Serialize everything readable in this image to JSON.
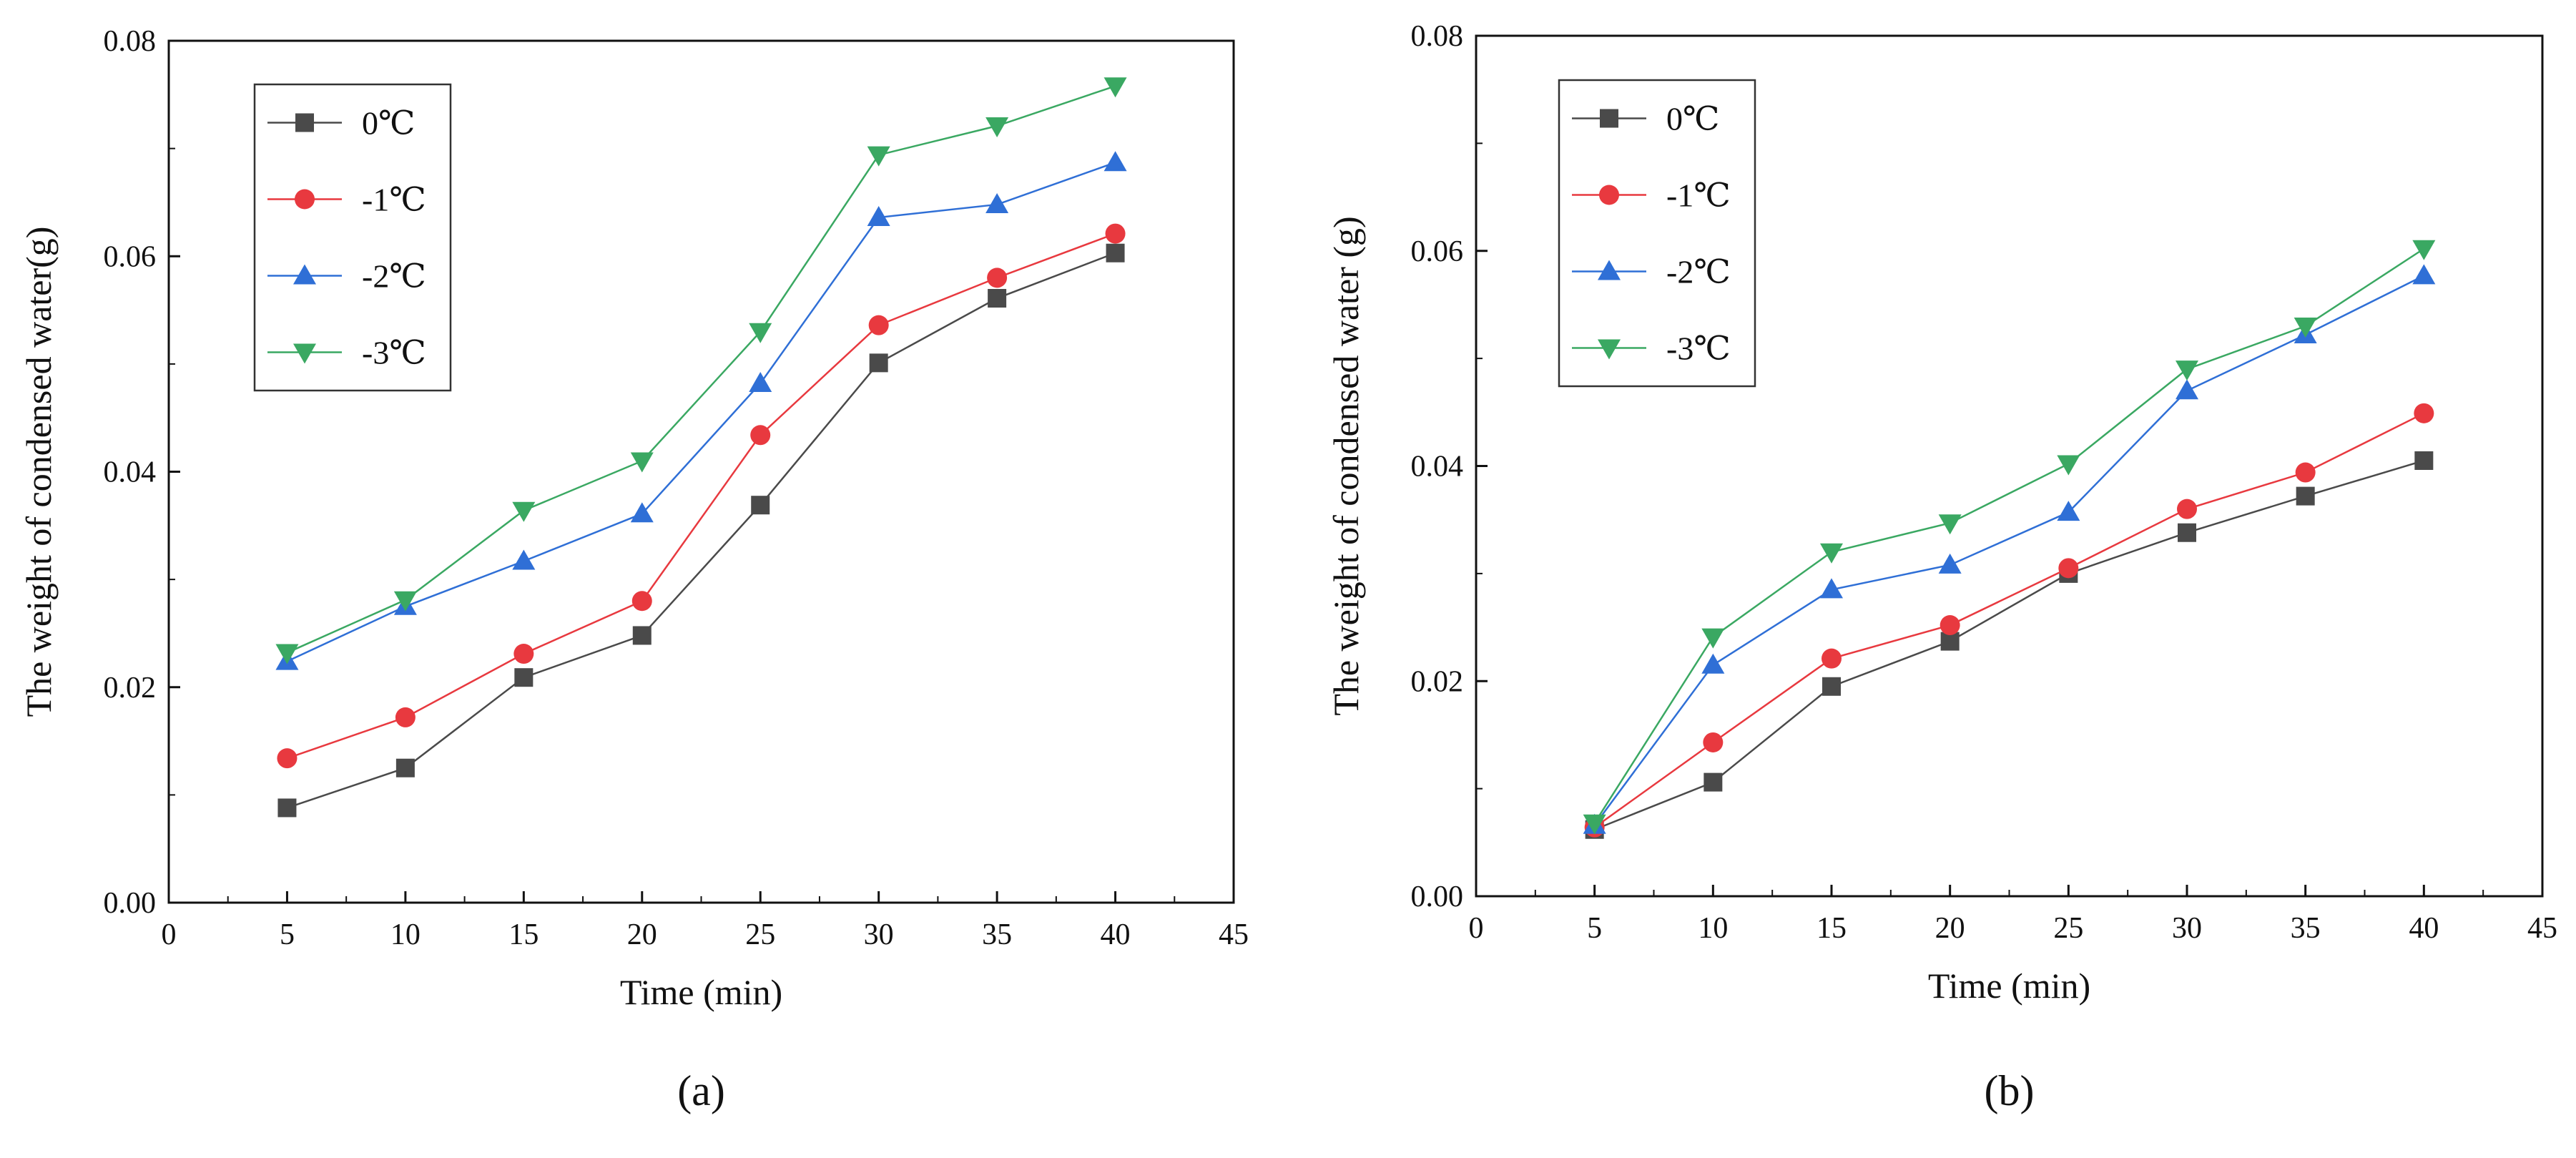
{
  "chart_data": [
    {
      "type": "line",
      "panel_label": "(a)",
      "xlabel": "Time (min)",
      "ylabel": "The weight of condensed water(g)",
      "xlim": [
        0,
        45
      ],
      "ylim": [
        0,
        0.08
      ],
      "xticks": [
        "0",
        "5",
        "10",
        "15",
        "20",
        "25",
        "30",
        "35",
        "40",
        "45"
      ],
      "yticks": [
        "0.00",
        "0.02",
        "0.04",
        "0.06",
        "0.08"
      ],
      "x": [
        5,
        10,
        15,
        20,
        25,
        30,
        35,
        40
      ],
      "legend_position": "top-left",
      "series": [
        {
          "name": "0℃",
          "color": "#4a4a4a",
          "marker": "square",
          "values": [
            0.0088,
            0.0125,
            0.0209,
            0.0248,
            0.0369,
            0.0501,
            0.0561,
            0.0603
          ]
        },
        {
          "name": "-1℃",
          "color": "#e8393f",
          "marker": "circle",
          "values": [
            0.0134,
            0.0172,
            0.0231,
            0.028,
            0.0434,
            0.0536,
            0.058,
            0.0621
          ]
        },
        {
          "name": "-2℃",
          "color": "#2f6fd6",
          "marker": "triangle-up",
          "values": [
            0.0224,
            0.0275,
            0.0317,
            0.0361,
            0.0482,
            0.0636,
            0.0648,
            0.0687
          ]
        },
        {
          "name": "-3℃",
          "color": "#3aa862",
          "marker": "triangle-down",
          "values": [
            0.0232,
            0.0281,
            0.0364,
            0.041,
            0.053,
            0.0694,
            0.0721,
            0.0758
          ]
        }
      ]
    },
    {
      "type": "line",
      "panel_label": "(b)",
      "xlabel": "Time (min)",
      "ylabel": "The weight of condensed water (g)",
      "xlim": [
        0,
        45
      ],
      "ylim": [
        0,
        0.08
      ],
      "xticks": [
        "0",
        "5",
        "10",
        "15",
        "20",
        "25",
        "30",
        "35",
        "40",
        "45"
      ],
      "yticks": [
        "0.00",
        "0.02",
        "0.04",
        "0.06",
        "0.08"
      ],
      "x": [
        5,
        10,
        15,
        20,
        25,
        30,
        35,
        40
      ],
      "legend_position": "top-left",
      "series": [
        {
          "name": "0℃",
          "color": "#4a4a4a",
          "marker": "square",
          "values": [
            0.0062,
            0.0106,
            0.0195,
            0.0237,
            0.03,
            0.0338,
            0.0372,
            0.0405
          ]
        },
        {
          "name": "-1℃",
          "color": "#e8393f",
          "marker": "circle",
          "values": [
            0.0064,
            0.0143,
            0.0221,
            0.0252,
            0.0305,
            0.036,
            0.0394,
            0.0449
          ]
        },
        {
          "name": "-2℃",
          "color": "#2f6fd6",
          "marker": "triangle-up",
          "values": [
            0.0066,
            0.0215,
            0.0285,
            0.0308,
            0.0357,
            0.047,
            0.0522,
            0.0577
          ]
        },
        {
          "name": "-3℃",
          "color": "#3aa862",
          "marker": "triangle-down",
          "values": [
            0.0068,
            0.0241,
            0.032,
            0.0347,
            0.0402,
            0.049,
            0.053,
            0.0602
          ]
        }
      ]
    }
  ]
}
